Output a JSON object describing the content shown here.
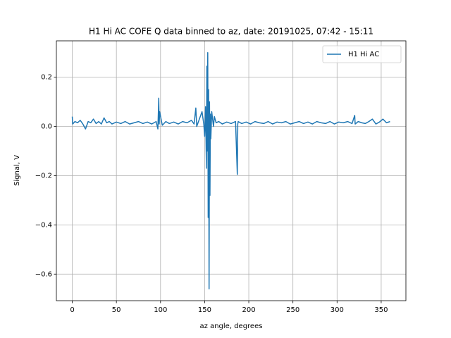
{
  "chart_data": {
    "type": "line",
    "title": "H1 Hi AC COFE Q data binned to az, date: 20191025, 07:42 - 15:11",
    "x_label": "az angle, degrees",
    "y_label": "Signal, V",
    "x": [
      0,
      0.5,
      3,
      6,
      9,
      12,
      15,
      18,
      21,
      24,
      27,
      30,
      33,
      36,
      39,
      42,
      45,
      50,
      55,
      60,
      65,
      70,
      75,
      80,
      85,
      90,
      95,
      97,
      98,
      98.5,
      99,
      102,
      106,
      110,
      115,
      120,
      125,
      130,
      135,
      138,
      140,
      141,
      144,
      147,
      149,
      150,
      151,
      152,
      152.5,
      153,
      153.5,
      154,
      154.5,
      155,
      155.5,
      156,
      156.5,
      157,
      158,
      160,
      161,
      163,
      166,
      170,
      175,
      180,
      185,
      187,
      187.5,
      188,
      192,
      197,
      202,
      207,
      212,
      217,
      222,
      227,
      232,
      237,
      242,
      247,
      252,
      257,
      262,
      267,
      272,
      277,
      282,
      287,
      292,
      297,
      302,
      307,
      312,
      317,
      320,
      320.5,
      324,
      328,
      332,
      336,
      340,
      344,
      348,
      352,
      356,
      360
    ],
    "series": [
      {
        "name": "H1 Hi AC",
        "color": "#1f77b4",
        "values": [
          0.04,
          0.01,
          0.02,
          0.015,
          0.025,
          0.01,
          -0.01,
          0.02,
          0.015,
          0.03,
          0.012,
          0.02,
          0.01,
          0.035,
          0.015,
          0.02,
          0.01,
          0.018,
          0.012,
          0.02,
          0.01,
          0.015,
          0.02,
          0.012,
          0.018,
          0.01,
          0.02,
          -0.01,
          0.115,
          0.01,
          0.06,
          0.005,
          0.02,
          0.012,
          0.018,
          0.01,
          0.02,
          0.015,
          0.025,
          0.01,
          0.075,
          0.0,
          0.03,
          0.06,
          0.01,
          -0.04,
          0.08,
          -0.17,
          0.245,
          -0.1,
          0.3,
          -0.37,
          0.15,
          -0.66,
          0.1,
          -0.28,
          0.05,
          -0.05,
          0.06,
          0.0,
          0.04,
          0.015,
          0.02,
          0.01,
          0.018,
          0.012,
          0.02,
          -0.195,
          0.01,
          0.02,
          0.012,
          0.018,
          0.01,
          0.02,
          0.015,
          0.012,
          0.02,
          0.01,
          0.018,
          0.015,
          0.02,
          0.01,
          0.015,
          0.02,
          0.012,
          0.018,
          0.01,
          0.02,
          0.015,
          0.012,
          0.02,
          0.01,
          0.018,
          0.015,
          0.02,
          0.012,
          0.045,
          0.01,
          0.02,
          0.015,
          0.012,
          0.02,
          0.03,
          0.01,
          0.018,
          0.03,
          0.015,
          0.02
        ]
      }
    ],
    "xlim": [
      -18,
      378
    ],
    "ylim": [
      -0.708,
      0.348
    ],
    "xticks": [
      0,
      50,
      100,
      150,
      200,
      250,
      300,
      350
    ],
    "yticks": [
      0.2,
      0.0,
      -0.2,
      -0.4,
      -0.6
    ],
    "grid": true,
    "legend": "upper right"
  }
}
